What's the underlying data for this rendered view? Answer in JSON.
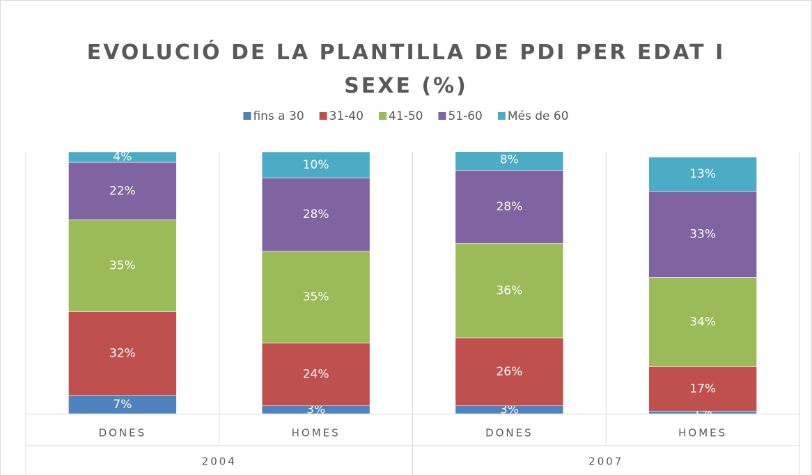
{
  "chart_data": {
    "type": "stacked_bar",
    "title": "EVOLUCIÓ DE LA PLANTILLA DE PDI PER EDAT I SEXE (%)",
    "categories": [
      "DONES",
      "HOMES",
      "DONES",
      "HOMES"
    ],
    "groups": [
      "2004",
      "2007"
    ],
    "ylim": [
      0,
      100
    ],
    "legend": "top",
    "series": [
      {
        "name": "fins a 30",
        "color": "#4f81bd",
        "values": [
          7,
          3,
          3,
          1
        ],
        "value_labels": [
          "7%",
          "3%",
          "3%",
          "1%"
        ]
      },
      {
        "name": "31-40",
        "color": "#c0504d",
        "values": [
          32,
          24,
          26,
          17
        ],
        "value_labels": [
          "32%",
          "24%",
          "26%",
          "17%"
        ]
      },
      {
        "name": "41-50",
        "color": "#9bbb59",
        "values": [
          35,
          35,
          36,
          34
        ],
        "value_labels": [
          "35%",
          "35%",
          "36%",
          "34%"
        ]
      },
      {
        "name": "51-60",
        "color": "#8064a2",
        "values": [
          22,
          28,
          28,
          33
        ],
        "value_labels": [
          "22%",
          "28%",
          "28%",
          "33%"
        ]
      },
      {
        "name": "Més de 60",
        "color": "#4bacc6",
        "values": [
          4,
          10,
          8,
          13
        ],
        "value_labels": [
          "4%",
          "10%",
          "8%",
          "13%"
        ]
      }
    ]
  }
}
